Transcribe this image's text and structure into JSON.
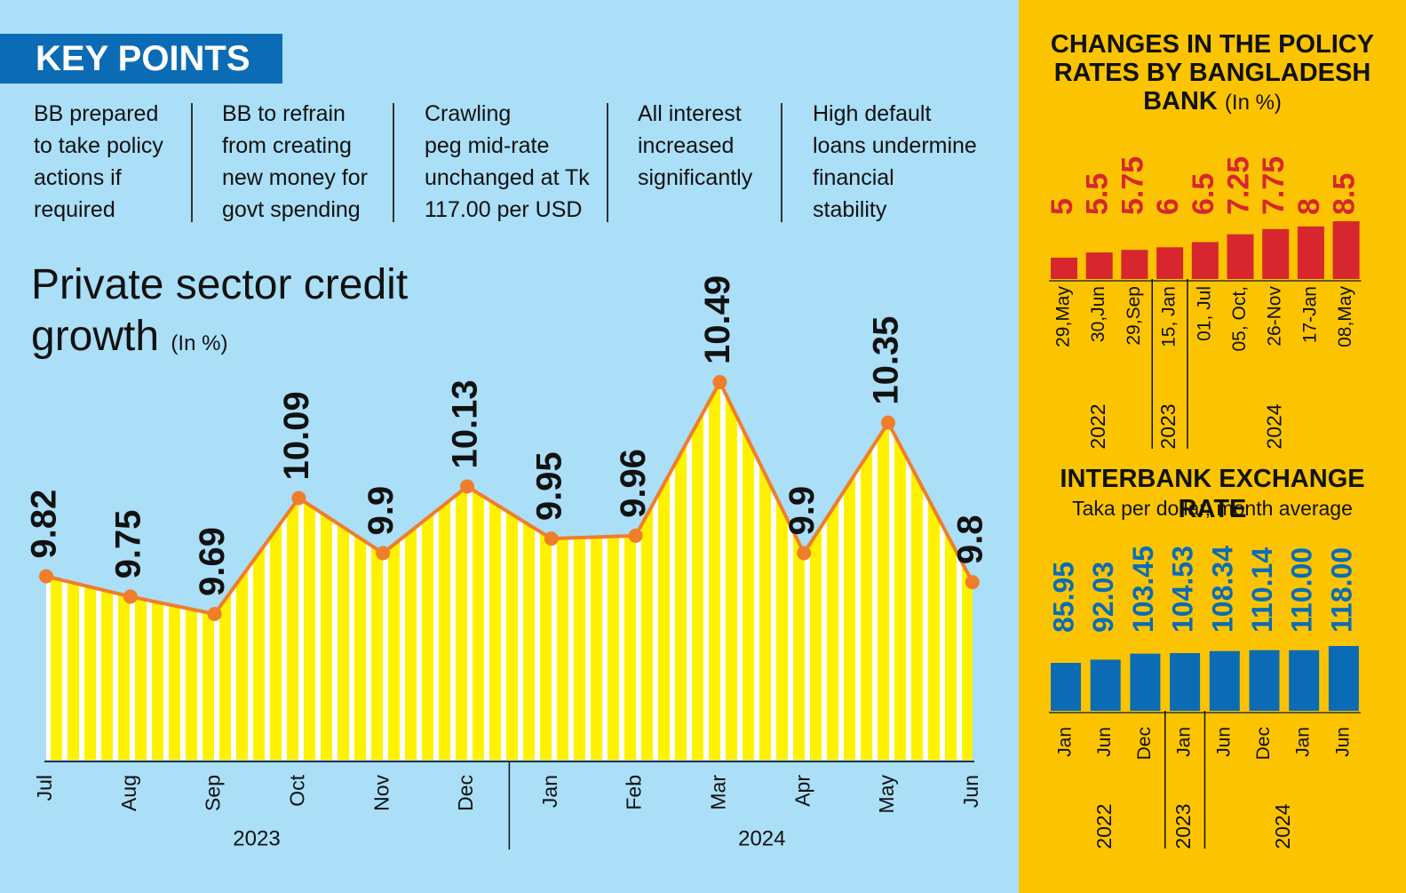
{
  "key_points": {
    "title": "KEY POINTS",
    "items": [
      [
        "BB prepared",
        "to take policy",
        "actions if",
        "required"
      ],
      [
        "BB to refrain",
        "from creating",
        "new money for",
        "govt spending"
      ],
      [
        "Crawling",
        "peg mid-rate",
        "unchanged at Tk",
        "117.00 per USD"
      ],
      [
        "All interest",
        "increased",
        "significantly"
      ],
      [
        "High default",
        "loans undermine",
        "financial",
        "stability"
      ]
    ]
  },
  "chart_data": [
    {
      "type": "line",
      "title": "Private sector credit growth",
      "subtitle": "(In %)",
      "color": "#f07d2a",
      "fill_color": "#fff200",
      "groups": [
        {
          "label": "2023",
          "categories": [
            "Jul",
            "Aug",
            "Sep",
            "Oct",
            "Nov",
            "Dec"
          ],
          "values": [
            9.82,
            9.75,
            9.69,
            10.09,
            9.9,
            10.13
          ]
        },
        {
          "label": "2024",
          "categories": [
            "Jan",
            "Feb",
            "Mar",
            "Apr",
            "May",
            "Jun"
          ],
          "values": [
            9.95,
            9.96,
            10.49,
            9.9,
            10.35,
            9.8
          ]
        }
      ]
    },
    {
      "type": "bar",
      "title": "CHANGES IN THE POLICY RATES BY BANGLADESH BANK",
      "subtitle": "(In %)",
      "color": "#d7262e",
      "groups": [
        {
          "label": "2022",
          "categories": [
            "29,May",
            "30,Jun",
            "29,Sep"
          ],
          "values": [
            5,
            5.5,
            5.75
          ]
        },
        {
          "label": "2023",
          "categories": [
            "15, Jan"
          ],
          "values": [
            6
          ]
        },
        {
          "label": "2024",
          "categories": [
            "01, Jul",
            "05, Oct,",
            "26-Nov",
            "17-Jan",
            "08,May"
          ],
          "values": [
            6.5,
            7.25,
            7.75,
            8,
            8.5
          ]
        }
      ]
    },
    {
      "type": "bar",
      "title": "INTERBANK EXCHANGE RATE",
      "subtitle": "Taka per dollar, month average",
      "color": "#0b6cb5",
      "groups": [
        {
          "label": "2022",
          "categories": [
            "Jan",
            "Jun",
            "Dec"
          ],
          "values": [
            85.95,
            92.03,
            103.45
          ]
        },
        {
          "label": "2023",
          "categories": [
            "Jan"
          ],
          "values": [
            104.53
          ]
        },
        {
          "label": "2024",
          "categories": [
            "Jun",
            "Dec",
            "Jan",
            "Jun"
          ],
          "values": [
            108.34,
            110.14,
            110.0,
            118.0
          ],
          "value_labels": [
            "108.34",
            "110.14",
            "110.00",
            "118.00"
          ]
        }
      ]
    }
  ]
}
